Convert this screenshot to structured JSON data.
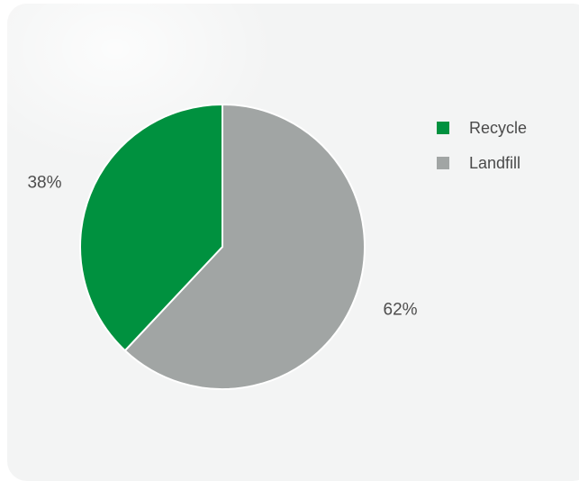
{
  "chart_data": {
    "type": "pie",
    "categories": [
      "Recycle",
      "Landfill"
    ],
    "values": [
      38,
      62
    ],
    "data_labels": [
      "38%",
      "62%"
    ],
    "colors": [
      "#00913f",
      "#a1a5a4"
    ],
    "legend": {
      "placement": "right",
      "items": [
        {
          "label": "Recycle",
          "color": "#00913f"
        },
        {
          "label": "Landfill",
          "color": "#a1a5a4"
        }
      ]
    }
  }
}
